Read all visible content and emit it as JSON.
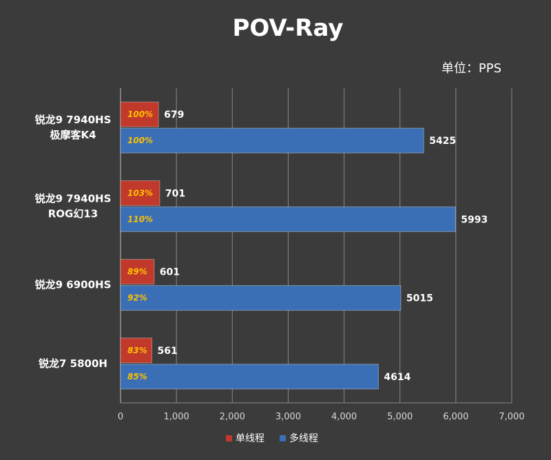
{
  "chart_data": {
    "type": "bar",
    "orientation": "horizontal",
    "title": "POV-Ray",
    "unit_label": "单位：PPS",
    "categories": [
      [
        "锐龙9 7940HS",
        "极摩客K4"
      ],
      [
        "锐龙9 7940HS",
        "ROG幻13"
      ],
      [
        "锐龙9 6900HS"
      ],
      [
        "锐龙7 5800H"
      ]
    ],
    "series": [
      {
        "name": "单线程",
        "color": "#c0392b",
        "values": [
          679,
          701,
          601,
          561
        ],
        "percent_labels": [
          "100%",
          "103%",
          "89%",
          "83%"
        ]
      },
      {
        "name": "多线程",
        "color": "#3a6fb5",
        "values": [
          5425,
          5993,
          5015,
          4614
        ],
        "percent_labels": [
          "100%",
          "110%",
          "92%",
          "85%"
        ]
      }
    ],
    "xlim": [
      0,
      7000
    ],
    "xticks": [
      "0",
      "1,000",
      "2,000",
      "3,000",
      "4,000",
      "5,000",
      "6,000",
      "7,000"
    ],
    "grid": true,
    "legend_position": "bottom"
  }
}
